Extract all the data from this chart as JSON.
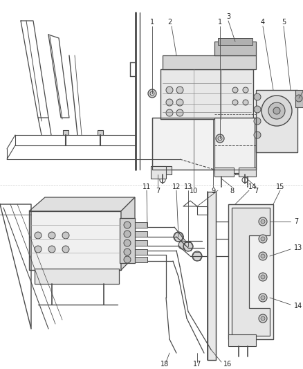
{
  "background_color": "#ffffff",
  "line_color": "#4a4a4a",
  "label_color": "#222222",
  "label_fontsize": 7.0,
  "fig_width": 4.38,
  "fig_height": 5.33,
  "dpi": 100
}
